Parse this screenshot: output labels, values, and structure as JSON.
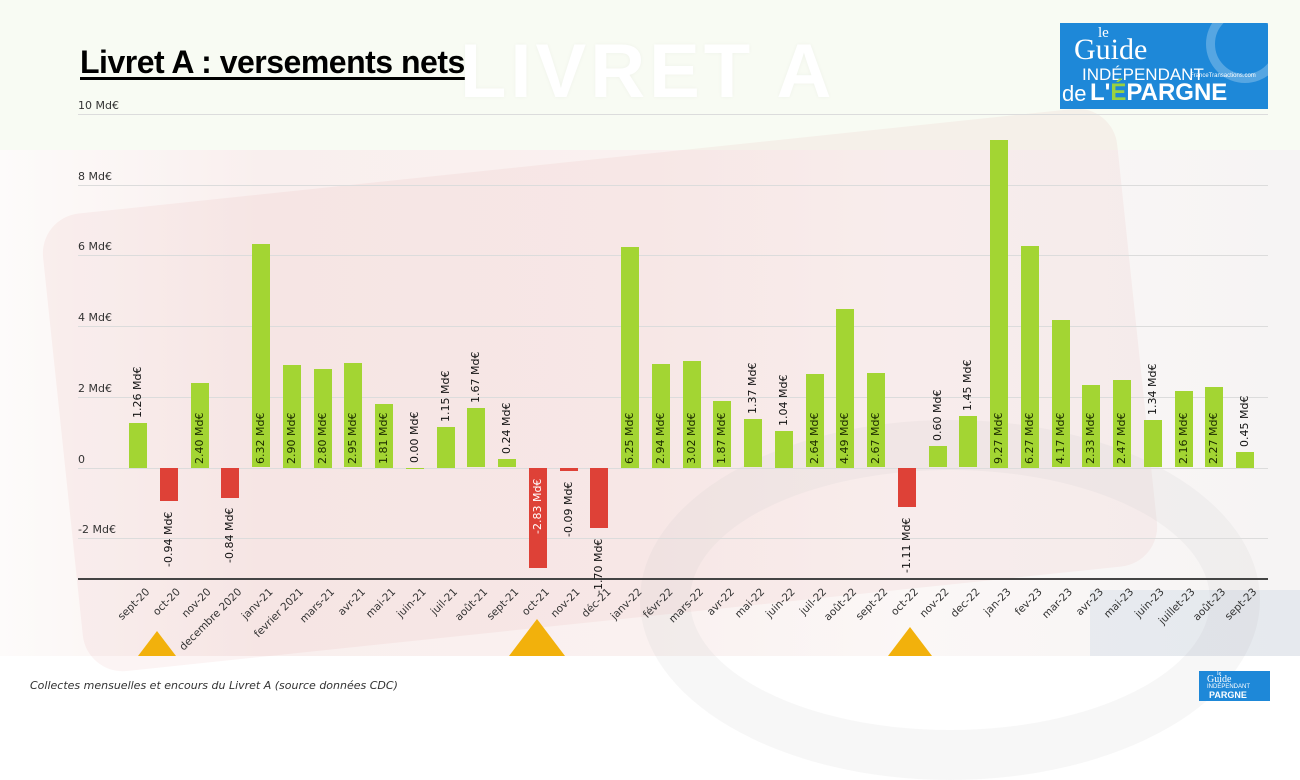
{
  "header": {
    "title": "Livret A : versements nets",
    "watermark": "LIVRET A",
    "logo": {
      "line1": "le",
      "line2": "Guide",
      "line3": "INDÉPENDANT",
      "line3_small": "FranceTransactions.com",
      "line4": "de",
      "line5_prefix": "L'",
      "line5_accent": "É",
      "line5_rest": "PARGNE"
    }
  },
  "footer": {
    "caption": "Collectes mensuelles et encours du Livret A (source données CDC)"
  },
  "colors": {
    "positive": "#a3d533",
    "negative": "#de4137",
    "marker": "#f2b10c",
    "logo_blue": "#1e88d8"
  },
  "chart_data": {
    "type": "bar",
    "title": "Livret A : versements nets",
    "xlabel": "",
    "ylabel": "",
    "ylim": [
      -3.17,
      10
    ],
    "yticks": [
      {
        "value": 10,
        "label": "10 Md€"
      },
      {
        "value": 8,
        "label": "8 Md€"
      },
      {
        "value": 6,
        "label": "6 Md€"
      },
      {
        "value": 4,
        "label": "4 Md€"
      },
      {
        "value": 2,
        "label": "2 Md€"
      },
      {
        "value": 0,
        "label": "0"
      },
      {
        "value": -2,
        "label": "-2 Md€"
      }
    ],
    "grid": true,
    "legend": null,
    "categories": [
      "sept-20",
      "oct-20",
      "nov-20",
      "decembre 2020",
      "janv-21",
      "fevrier 2021",
      "mars-21",
      "avr-21",
      "mai-21",
      "juin-21",
      "juil-21",
      "août-21",
      "sept-21",
      "oct-21",
      "nov-21",
      "déc-21",
      "janv-22",
      "févr-22",
      "mars-22",
      "avr-22",
      "mai-22",
      "juin-22",
      "juil-22",
      "août-22",
      "sept-22",
      "oct-22",
      "nov-22",
      "dec-22",
      "jan-23",
      "fev-23",
      "mar-23",
      "avr-23",
      "mai-23",
      "juin-23",
      "juillet-23",
      "août-23",
      "sept-23"
    ],
    "values": [
      1.26,
      -0.94,
      2.4,
      -0.84,
      6.32,
      2.9,
      2.8,
      2.95,
      1.81,
      0.0,
      1.15,
      1.67,
      0.24,
      -2.83,
      -0.09,
      -1.7,
      6.25,
      2.94,
      3.02,
      1.87,
      1.37,
      1.04,
      2.64,
      4.49,
      2.67,
      -1.11,
      0.6,
      1.45,
      9.27,
      6.27,
      4.17,
      2.33,
      2.47,
      1.34,
      2.16,
      2.27,
      0.45
    ],
    "labels": [
      "1.26 Md€",
      "-0.94 Md€",
      "2.40 Md€",
      "-0.84 Md€",
      "6.32 Md€",
      "2.90 Md€",
      "2.80 Md€",
      "2.95 Md€",
      "1.81 Md€",
      "0.00 Md€",
      "1.15 Md€",
      "1.67 Md€",
      "0.24 Md€",
      "-2.83 Md€",
      "-0.09 Md€",
      "-1.70 Md€",
      "6.25 Md€",
      "2.94 Md€",
      "3.02 Md€",
      "1.87 Md€",
      "1.37 Md€",
      "1.04 Md€",
      "2.64 Md€",
      "4.49 Md€",
      "2.67 Md€",
      "-1.11 Md€",
      "0.60 Md€",
      "1.45 Md€",
      "9.27 Md€",
      "6.27 Md€",
      "4.17 Md€",
      "2.33 Md€",
      "2.47 Md€",
      "1.34 Md€",
      "2.16 Md€",
      "2.27 Md€",
      "0.45 Md€"
    ],
    "annotations": [
      {
        "type": "triangle-marker",
        "category": "oct-20"
      },
      {
        "type": "triangle-marker",
        "category": "oct-21"
      },
      {
        "type": "triangle-marker",
        "category": "oct-22"
      }
    ]
  }
}
